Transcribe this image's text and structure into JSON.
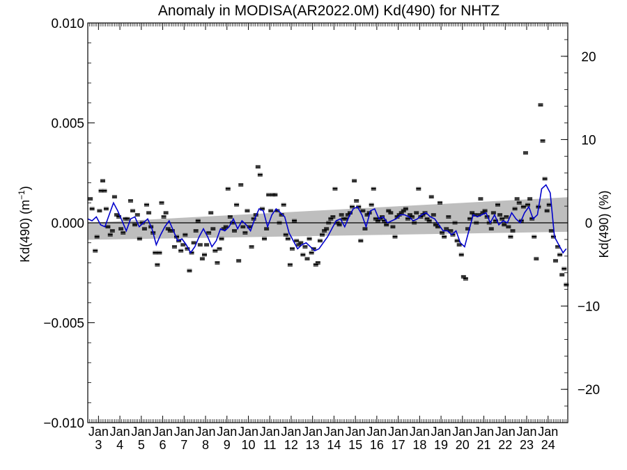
{
  "chart_data": {
    "type": "scatter",
    "title": "Anomaly in MODISA(AR2022.0M) Kd(490) for NHTZ",
    "ylabel_left": "Kd(490) (m",
    "ylabel_left_sup": "−1",
    "ylabel_left_close": ")",
    "ylabel_right": "Kd(490) (%)",
    "ylim_left": [
      -0.01,
      0.01
    ],
    "ylim_right": [
      -24,
      24
    ],
    "xlim": [
      2002.5,
      2024.92
    ],
    "yticks_left": [
      {
        "value": 0.01,
        "label": "0.010"
      },
      {
        "value": 0.005,
        "label": "0.005"
      },
      {
        "value": 0.0,
        "label": "0.000"
      },
      {
        "value": -0.005,
        "label": "−0.005"
      },
      {
        "value": -0.01,
        "label": "−0.010"
      }
    ],
    "yticks_right": [
      {
        "value": 20,
        "label": "20"
      },
      {
        "value": 10,
        "label": "10"
      },
      {
        "value": 0,
        "label": "0"
      },
      {
        "value": -10,
        "label": "−10"
      },
      {
        "value": -20,
        "label": "−20"
      }
    ],
    "xticks": [
      {
        "value": 2003,
        "month": "Jan",
        "year": "3"
      },
      {
        "value": 2004,
        "month": "Jan",
        "year": "4"
      },
      {
        "value": 2005,
        "month": "Jan",
        "year": "5"
      },
      {
        "value": 2006,
        "month": "Jan",
        "year": "6"
      },
      {
        "value": 2007,
        "month": "Jan",
        "year": "7"
      },
      {
        "value": 2008,
        "month": "Jan",
        "year": "8"
      },
      {
        "value": 2009,
        "month": "Jan",
        "year": "9"
      },
      {
        "value": 2010,
        "month": "Jan",
        "year": "10"
      },
      {
        "value": 2011,
        "month": "Jan",
        "year": "11"
      },
      {
        "value": 2012,
        "month": "Jan",
        "year": "12"
      },
      {
        "value": 2013,
        "month": "Jan",
        "year": "13"
      },
      {
        "value": 2014,
        "month": "Jan",
        "year": "14"
      },
      {
        "value": 2015,
        "month": "Jan",
        "year": "15"
      },
      {
        "value": 2016,
        "month": "Jan",
        "year": "16"
      },
      {
        "value": 2017,
        "month": "Jan",
        "year": "17"
      },
      {
        "value": 2018,
        "month": "Jan",
        "year": "18"
      },
      {
        "value": 2019,
        "month": "Jan",
        "year": "19"
      },
      {
        "value": 2020,
        "month": "Jan",
        "year": "20"
      },
      {
        "value": 2021,
        "month": "Jan",
        "year": "21"
      },
      {
        "value": 2022,
        "month": "Jan",
        "year": "22"
      },
      {
        "value": 2023,
        "month": "Jan",
        "year": "23"
      },
      {
        "value": 2024,
        "month": "Jan",
        "year": "24"
      }
    ],
    "trend_band": {
      "x": [
        2002.5,
        2024.92
      ],
      "upper": [
        0.0,
        0.00128
      ],
      "lower": [
        -0.00085,
        -0.00045
      ]
    },
    "colors": {
      "points": "#000000",
      "smooth_line": "#0000cc",
      "band": "#bebebe",
      "zero_line": "#000000"
    },
    "smooth_line": [
      [
        2002.5,
        0.0002
      ],
      [
        2002.7,
        0.0001
      ],
      [
        2002.9,
        0.0003
      ],
      [
        2003.1,
        -0.0001
      ],
      [
        2003.3,
        -0.0002
      ],
      [
        2003.5,
        0.0004
      ],
      [
        2003.7,
        0.001
      ],
      [
        2003.9,
        0.0006
      ],
      [
        2004.1,
        0.0001
      ],
      [
        2004.3,
        -0.0004
      ],
      [
        2004.5,
        0.0002
      ],
      [
        2004.7,
        0.0003
      ],
      [
        2004.9,
        -0.0002
      ],
      [
        2005.1,
        0.0
      ],
      [
        2005.3,
        0.0002
      ],
      [
        2005.5,
        -0.0003
      ],
      [
        2005.7,
        -0.0011
      ],
      [
        2005.9,
        -0.0006
      ],
      [
        2006.1,
        -0.0002
      ],
      [
        2006.3,
        0.0001
      ],
      [
        2006.5,
        -0.0004
      ],
      [
        2006.7,
        -0.0009
      ],
      [
        2006.9,
        -0.0008
      ],
      [
        2007.1,
        -0.0011
      ],
      [
        2007.3,
        -0.0015
      ],
      [
        2007.5,
        -0.0012
      ],
      [
        2007.7,
        -0.0007
      ],
      [
        2007.9,
        -0.0003
      ],
      [
        2008.1,
        -0.0007
      ],
      [
        2008.3,
        -0.0012
      ],
      [
        2008.5,
        -0.0009
      ],
      [
        2008.7,
        -0.0003
      ],
      [
        2008.9,
        -0.0004
      ],
      [
        2009.1,
        -0.0002
      ],
      [
        2009.3,
        0.0002
      ],
      [
        2009.5,
        -0.0003
      ],
      [
        2009.7,
        0.0001
      ],
      [
        2009.9,
        -0.0001
      ],
      [
        2010.1,
        -0.0004
      ],
      [
        2010.3,
        0.0002
      ],
      [
        2010.5,
        0.0007
      ],
      [
        2010.7,
        0.0006
      ],
      [
        2010.9,
        -0.0002
      ],
      [
        2011.1,
        0.0004
      ],
      [
        2011.3,
        0.0007
      ],
      [
        2011.5,
        0.0005
      ],
      [
        2011.7,
        0.0003
      ],
      [
        2011.9,
        -0.0005
      ],
      [
        2012.1,
        -0.0009
      ],
      [
        2012.3,
        -0.0013
      ],
      [
        2012.5,
        -0.0011
      ],
      [
        2012.7,
        -0.001
      ],
      [
        2012.9,
        -0.0012
      ],
      [
        2013.1,
        -0.0014
      ],
      [
        2013.3,
        -0.0013
      ],
      [
        2013.5,
        -0.001
      ],
      [
        2013.7,
        -0.0007
      ],
      [
        2013.9,
        -0.0003
      ],
      [
        2014.1,
        0.0001
      ],
      [
        2014.3,
        0.0002
      ],
      [
        2014.5,
        -0.0002
      ],
      [
        2014.7,
        0.0003
      ],
      [
        2014.9,
        0.0007
      ],
      [
        2015.1,
        0.0008
      ],
      [
        2015.3,
        0.0004
      ],
      [
        2015.5,
        -0.0002
      ],
      [
        2015.7,
        0.0006
      ],
      [
        2015.9,
        0.0007
      ],
      [
        2016.1,
        0.0002
      ],
      [
        2016.3,
        0.0003
      ],
      [
        2016.5,
        0.0
      ],
      [
        2016.7,
        0.0001
      ],
      [
        2016.9,
        0.0002
      ],
      [
        2017.1,
        0.0004
      ],
      [
        2017.3,
        0.0004
      ],
      [
        2017.5,
        0.0003
      ],
      [
        2017.7,
        0.0001
      ],
      [
        2017.9,
        0.0002
      ],
      [
        2018.1,
        0.0004
      ],
      [
        2018.3,
        0.0005
      ],
      [
        2018.5,
        0.0003
      ],
      [
        2018.7,
        0.0002
      ],
      [
        2018.9,
        -0.0001
      ],
      [
        2019.1,
        -0.0004
      ],
      [
        2019.3,
        -0.0004
      ],
      [
        2019.5,
        -0.0006
      ],
      [
        2019.7,
        -0.0004
      ],
      [
        2019.9,
        -0.001
      ],
      [
        2020.1,
        -0.0012
      ],
      [
        2020.3,
        -0.0004
      ],
      [
        2020.5,
        0.0004
      ],
      [
        2020.7,
        0.0003
      ],
      [
        2020.9,
        0.0004
      ],
      [
        2021.1,
        0.0005
      ],
      [
        2021.3,
        0.0
      ],
      [
        2021.5,
        0.0004
      ],
      [
        2021.7,
        -0.0001
      ],
      [
        2021.9,
        0.0001
      ],
      [
        2022.1,
        0.0
      ],
      [
        2022.3,
        0.0005
      ],
      [
        2022.5,
        0.0002
      ],
      [
        2022.7,
        0.0
      ],
      [
        2022.9,
        0.0005
      ],
      [
        2023.1,
        0.0008
      ],
      [
        2023.3,
        0.0002
      ],
      [
        2023.5,
        0.0004
      ],
      [
        2023.7,
        0.0017
      ],
      [
        2023.9,
        0.0019
      ],
      [
        2024.1,
        0.0015
      ],
      [
        2024.3,
        -0.0007
      ],
      [
        2024.5,
        -0.0011
      ],
      [
        2024.7,
        -0.0015
      ],
      [
        2024.85,
        -0.0013
      ]
    ],
    "points": [
      [
        2002.62,
        0.0012
      ],
      [
        2002.7,
        0.0007
      ],
      [
        2002.85,
        -0.0014
      ],
      [
        2002.93,
        -0.0007
      ],
      [
        2003.05,
        0.0006
      ],
      [
        2003.12,
        0.0016
      ],
      [
        2003.2,
        0.0021
      ],
      [
        2003.28,
        0.0016
      ],
      [
        2003.36,
        0.0007
      ],
      [
        2003.44,
        -0.0002
      ],
      [
        2003.55,
        -0.0006
      ],
      [
        2003.65,
        -0.0004
      ],
      [
        2003.75,
        0.0013
      ],
      [
        2003.85,
        0.0004
      ],
      [
        2003.95,
        0.0003
      ],
      [
        2004.05,
        -0.0003
      ],
      [
        2004.15,
        -0.0005
      ],
      [
        2004.25,
        0.0002
      ],
      [
        2004.35,
        0.0002
      ],
      [
        2004.5,
        0.0011
      ],
      [
        2004.6,
        0.0006
      ],
      [
        2004.7,
        -0.0001
      ],
      [
        2004.82,
        0.0004
      ],
      [
        2004.92,
        -0.0008
      ],
      [
        2005.05,
        0.0
      ],
      [
        2005.15,
        -0.0003
      ],
      [
        2005.25,
        0.0009
      ],
      [
        2005.35,
        0.0005
      ],
      [
        2005.45,
        -0.0002
      ],
      [
        2005.55,
        -0.0005
      ],
      [
        2005.65,
        -0.0015
      ],
      [
        2005.75,
        -0.0021
      ],
      [
        2005.85,
        -0.0015
      ],
      [
        2005.95,
        0.001
      ],
      [
        2006.05,
        0.0003
      ],
      [
        2006.15,
        0.0005
      ],
      [
        2006.25,
        -0.0003
      ],
      [
        2006.35,
        -0.0004
      ],
      [
        2006.45,
        -0.0004
      ],
      [
        2006.55,
        -0.0012
      ],
      [
        2006.65,
        -0.0007
      ],
      [
        2006.75,
        -0.0009
      ],
      [
        2006.85,
        -0.0014
      ],
      [
        2006.95,
        -0.0011
      ],
      [
        2007.05,
        -0.0006
      ],
      [
        2007.15,
        -0.0013
      ],
      [
        2007.25,
        -0.0024
      ],
      [
        2007.35,
        -0.0015
      ],
      [
        2007.45,
        -0.001
      ],
      [
        2007.55,
        -0.0004
      ],
      [
        2007.65,
        0.0001
      ],
      [
        2007.75,
        -0.0011
      ],
      [
        2007.85,
        -0.0018
      ],
      [
        2007.95,
        -0.0016
      ],
      [
        2008.05,
        -0.0011
      ],
      [
        2008.15,
        -0.0005
      ],
      [
        2008.25,
        0.0005
      ],
      [
        2008.35,
        -0.0003
      ],
      [
        2008.45,
        -0.0014
      ],
      [
        2008.55,
        -0.002
      ],
      [
        2008.65,
        -0.0013
      ],
      [
        2008.75,
        -0.0008
      ],
      [
        2008.85,
        -0.0003
      ],
      [
        2008.95,
        -0.0002
      ],
      [
        2009.05,
        0.0017
      ],
      [
        2009.15,
        0.0003
      ],
      [
        2009.25,
        0.0
      ],
      [
        2009.35,
        -0.0004
      ],
      [
        2009.45,
        0.0009
      ],
      [
        2009.55,
        -0.0019
      ],
      [
        2009.65,
        0.0019
      ],
      [
        2009.75,
        -0.0002
      ],
      [
        2009.85,
        -0.0005
      ],
      [
        2009.95,
        0.0006
      ],
      [
        2010.05,
        -0.0002
      ],
      [
        2010.15,
        -0.0012
      ],
      [
        2010.25,
        0.0002
      ],
      [
        2010.35,
        0.0004
      ],
      [
        2010.45,
        0.0028
      ],
      [
        2010.55,
        0.0024
      ],
      [
        2010.65,
        0.0007
      ],
      [
        2010.75,
        -0.0008
      ],
      [
        2010.85,
        -0.0003
      ],
      [
        2010.95,
        0.0014
      ],
      [
        2011.05,
        0.0006
      ],
      [
        2011.15,
        0.0014
      ],
      [
        2011.25,
        0.0014
      ],
      [
        2011.35,
        0.0006
      ],
      [
        2011.45,
        0.0
      ],
      [
        2011.55,
        0.0004
      ],
      [
        2011.65,
        0.0009
      ],
      [
        2011.75,
        -0.0006
      ],
      [
        2011.85,
        -0.0008
      ],
      [
        2011.95,
        -0.0021
      ],
      [
        2012.05,
        -0.0013
      ],
      [
        2012.15,
        0.0001
      ],
      [
        2012.25,
        -0.0009
      ],
      [
        2012.35,
        -0.0011
      ],
      [
        2012.45,
        -0.001
      ],
      [
        2012.55,
        -0.0016
      ],
      [
        2012.65,
        -0.0012
      ],
      [
        2012.75,
        -0.0018
      ],
      [
        2012.85,
        -0.0008
      ],
      [
        2012.95,
        -0.0015
      ],
      [
        2013.05,
        -0.0013
      ],
      [
        2013.15,
        -0.0021
      ],
      [
        2013.25,
        -0.002
      ],
      [
        2013.35,
        -0.0009
      ],
      [
        2013.45,
        -0.0006
      ],
      [
        2013.55,
        -0.0004
      ],
      [
        2013.65,
        -0.0003
      ],
      [
        2013.75,
        0.0
      ],
      [
        2013.85,
        0.0002
      ],
      [
        2013.95,
        0.0003
      ],
      [
        2014.05,
        0.0017
      ],
      [
        2014.15,
        0.0
      ],
      [
        2014.25,
        -0.0001
      ],
      [
        2014.35,
        0.0004
      ],
      [
        2014.45,
        0.0002
      ],
      [
        2014.55,
        0.0002
      ],
      [
        2014.65,
        0.0004
      ],
      [
        2014.75,
        0.0005
      ],
      [
        2014.85,
        0.0008
      ],
      [
        2014.95,
        0.0021
      ],
      [
        2015.05,
        0.0011
      ],
      [
        2015.15,
        0.0008
      ],
      [
        2015.25,
        -0.0009
      ],
      [
        2015.35,
        0.0006
      ],
      [
        2015.45,
        -0.0003
      ],
      [
        2015.55,
        0.0004
      ],
      [
        2015.65,
        0.0005
      ],
      [
        2015.75,
        0.0009
      ],
      [
        2015.85,
        0.0017
      ],
      [
        2015.95,
        0.0002
      ],
      [
        2016.05,
        0.0001
      ],
      [
        2016.15,
        0.0002
      ],
      [
        2016.25,
        0.0003
      ],
      [
        2016.35,
        0.0001
      ],
      [
        2016.45,
        -0.0001
      ],
      [
        2016.55,
        0.0006
      ],
      [
        2016.65,
        0.0005
      ],
      [
        2016.75,
        -0.0002
      ],
      [
        2016.85,
        -0.0007
      ],
      [
        2016.95,
        0.0003
      ],
      [
        2017.05,
        0.0004
      ],
      [
        2017.15,
        0.0005
      ],
      [
        2017.25,
        0.0006
      ],
      [
        2017.35,
        0.0007
      ],
      [
        2017.45,
        0.0002
      ],
      [
        2017.55,
        0.0004
      ],
      [
        2017.65,
        0.0003
      ],
      [
        2017.75,
        0.0
      ],
      [
        2017.85,
        0.0005
      ],
      [
        2017.95,
        0.0017
      ],
      [
        2018.05,
        0.0003
      ],
      [
        2018.15,
        0.0004
      ],
      [
        2018.25,
        0.0005
      ],
      [
        2018.35,
        0.0002
      ],
      [
        2018.45,
        0.0001
      ],
      [
        2018.55,
        0.0013
      ],
      [
        2018.65,
        0.0004
      ],
      [
        2018.75,
        -0.0001
      ],
      [
        2018.85,
        -0.0002
      ],
      [
        2018.95,
        0.001
      ],
      [
        2019.05,
        -0.0005
      ],
      [
        2019.15,
        -0.0007
      ],
      [
        2019.25,
        -0.0003
      ],
      [
        2019.35,
        0.0003
      ],
      [
        2019.45,
        -0.0004
      ],
      [
        2019.55,
        -0.0006
      ],
      [
        2019.65,
        0.0
      ],
      [
        2019.75,
        -0.0009
      ],
      [
        2019.85,
        -0.0011
      ],
      [
        2019.95,
        -0.0016
      ],
      [
        2020.05,
        -0.0027
      ],
      [
        2020.15,
        -0.0028
      ],
      [
        2020.25,
        -0.0003
      ],
      [
        2020.35,
        0.0002
      ],
      [
        2020.45,
        0.0005
      ],
      [
        2020.55,
        0.0004
      ],
      [
        2020.65,
        0.0
      ],
      [
        2020.75,
        0.0004
      ],
      [
        2020.85,
        0.0012
      ],
      [
        2020.95,
        0.0005
      ],
      [
        2021.05,
        0.0006
      ],
      [
        2021.15,
        0.0003
      ],
      [
        2021.25,
        0.0
      ],
      [
        2021.35,
        -0.0003
      ],
      [
        2021.45,
        0.0005
      ],
      [
        2021.55,
        0.0001
      ],
      [
        2021.65,
        0.0009
      ],
      [
        2021.75,
        0.0004
      ],
      [
        2021.85,
        0.0002
      ],
      [
        2021.95,
        -0.0001
      ],
      [
        2022.05,
        0.0003
      ],
      [
        2022.15,
        -0.0002
      ],
      [
        2022.25,
        -0.0007
      ],
      [
        2022.35,
        -0.0004
      ],
      [
        2022.45,
        0.0007
      ],
      [
        2022.55,
        0.0012
      ],
      [
        2022.65,
        0.001
      ],
      [
        2022.75,
        0.0001
      ],
      [
        2022.85,
        0.0008
      ],
      [
        2022.95,
        0.0035
      ],
      [
        2023.05,
        0.0009
      ],
      [
        2023.15,
        0.0012
      ],
      [
        2023.25,
        0.0002
      ],
      [
        2023.35,
        -0.0007
      ],
      [
        2023.45,
        -0.0018
      ],
      [
        2023.55,
        0.0008
      ],
      [
        2023.65,
        0.0059
      ],
      [
        2023.75,
        0.0041
      ],
      [
        2023.85,
        0.0022
      ],
      [
        2023.95,
        0.0006
      ],
      [
        2024.05,
        0.0009
      ],
      [
        2024.15,
        -0.0004
      ],
      [
        2024.25,
        -0.0007
      ],
      [
        2024.35,
        -0.0019
      ],
      [
        2024.45,
        -0.0012
      ],
      [
        2024.55,
        -0.0016
      ],
      [
        2024.65,
        -0.0026
      ],
      [
        2024.75,
        -0.0023
      ],
      [
        2024.85,
        -0.0031
      ]
    ]
  }
}
